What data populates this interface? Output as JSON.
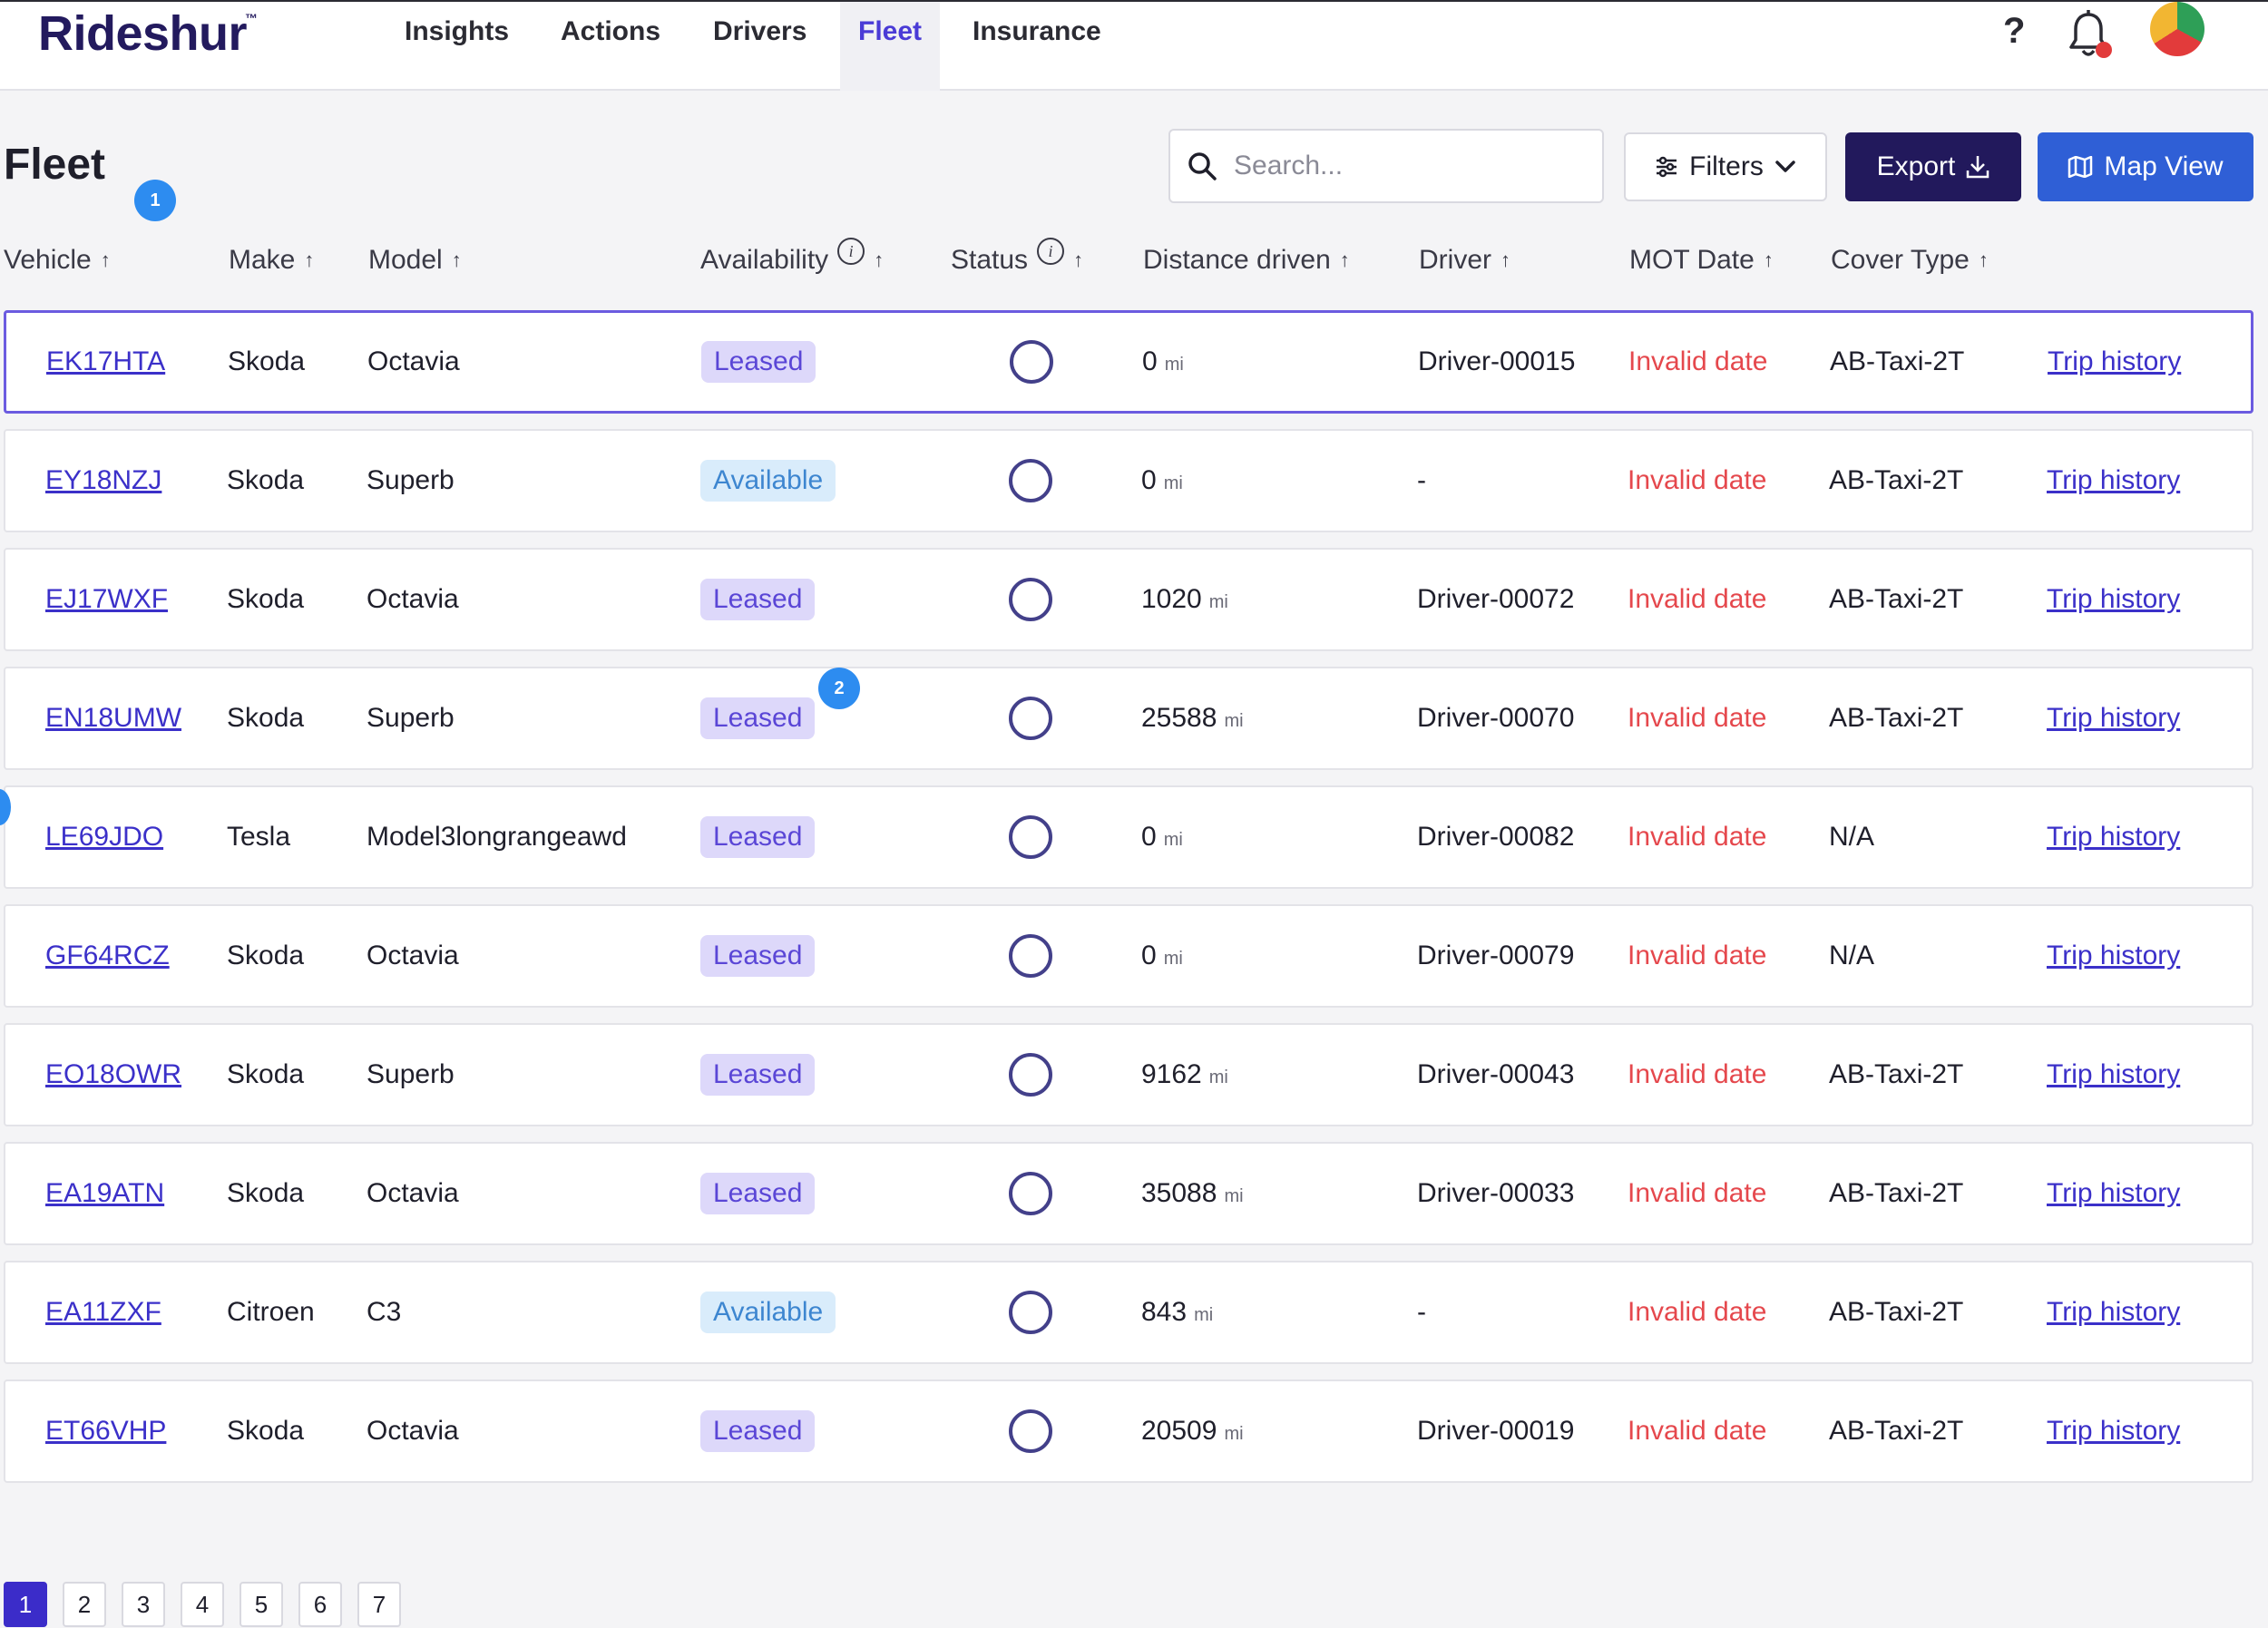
{
  "brand": {
    "name": "Rideshur",
    "tm": "™"
  },
  "nav": {
    "tabs": [
      {
        "label": "Insights"
      },
      {
        "label": "Actions"
      },
      {
        "label": "Drivers"
      },
      {
        "label": "Fleet",
        "active": true
      },
      {
        "label": "Insurance"
      }
    ],
    "help": "?",
    "icons": [
      "help-icon",
      "bell-icon",
      "avatar"
    ]
  },
  "page": {
    "title": "Fleet",
    "badge_1": "1",
    "badge_2": "2"
  },
  "toolbar": {
    "search_placeholder": "Search...",
    "filters_label": "Filters",
    "export_label": "Export",
    "map_label": "Map View"
  },
  "columns": [
    "Vehicle",
    "Make",
    "Model",
    "Availability",
    "Status",
    "Distance driven",
    "Driver",
    "MOT Date",
    "Cover Type"
  ],
  "rows": [
    {
      "vehicle": "EK17HTA",
      "make": "Skoda",
      "model": "Octavia",
      "availability": "Leased",
      "distance": "0",
      "unit": "mi",
      "driver": "Driver-00015",
      "mot": "Invalid date",
      "cover": "AB-Taxi-2T",
      "trip": "Trip history"
    },
    {
      "vehicle": "EY18NZJ",
      "make": "Skoda",
      "model": "Superb",
      "availability": "Available",
      "distance": "0",
      "unit": "mi",
      "driver": "-",
      "mot": "Invalid date",
      "cover": "AB-Taxi-2T",
      "trip": "Trip history"
    },
    {
      "vehicle": "EJ17WXF",
      "make": "Skoda",
      "model": "Octavia",
      "availability": "Leased",
      "distance": "1020",
      "unit": "mi",
      "driver": "Driver-00072",
      "mot": "Invalid date",
      "cover": "AB-Taxi-2T",
      "trip": "Trip history"
    },
    {
      "vehicle": "EN18UMW",
      "make": "Skoda",
      "model": "Superb",
      "availability": "Leased",
      "distance": "25588",
      "unit": "mi",
      "driver": "Driver-00070",
      "mot": "Invalid date",
      "cover": "AB-Taxi-2T",
      "trip": "Trip history"
    },
    {
      "vehicle": "LE69JDO",
      "make": "Tesla",
      "model": "Model3longrangeawd",
      "availability": "Leased",
      "distance": "0",
      "unit": "mi",
      "driver": "Driver-00082",
      "mot": "Invalid date",
      "cover": "N/A",
      "trip": "Trip history"
    },
    {
      "vehicle": "GF64RCZ",
      "make": "Skoda",
      "model": "Octavia",
      "availability": "Leased",
      "distance": "0",
      "unit": "mi",
      "driver": "Driver-00079",
      "mot": "Invalid date",
      "cover": "N/A",
      "trip": "Trip history"
    },
    {
      "vehicle": "EO18OWR",
      "make": "Skoda",
      "model": "Superb",
      "availability": "Leased",
      "distance": "9162",
      "unit": "mi",
      "driver": "Driver-00043",
      "mot": "Invalid date",
      "cover": "AB-Taxi-2T",
      "trip": "Trip history"
    },
    {
      "vehicle": "EA19ATN",
      "make": "Skoda",
      "model": "Octavia",
      "availability": "Leased",
      "distance": "35088",
      "unit": "mi",
      "driver": "Driver-00033",
      "mot": "Invalid date",
      "cover": "AB-Taxi-2T",
      "trip": "Trip history"
    },
    {
      "vehicle": "EA11ZXF",
      "make": "Citroen",
      "model": "C3",
      "availability": "Available",
      "distance": "843",
      "unit": "mi",
      "driver": "-",
      "mot": "Invalid date",
      "cover": "AB-Taxi-2T",
      "trip": "Trip history"
    },
    {
      "vehicle": "ET66VHP",
      "make": "Skoda",
      "model": "Octavia",
      "availability": "Leased",
      "distance": "20509",
      "unit": "mi",
      "driver": "Driver-00019",
      "mot": "Invalid date",
      "cover": "AB-Taxi-2T",
      "trip": "Trip history"
    }
  ],
  "pagination": {
    "pages": [
      "1",
      "2",
      "3",
      "4",
      "5",
      "6",
      "7"
    ],
    "current": "1"
  },
  "colors": {
    "brand": "#231a5e",
    "accent": "#4a3bd6",
    "export_bg": "#22195c",
    "map_bg": "#2f5fd6",
    "leased_bg": "#ddd8fa",
    "available_bg": "#d9ecfb",
    "invalid_date": "#e5484d"
  }
}
